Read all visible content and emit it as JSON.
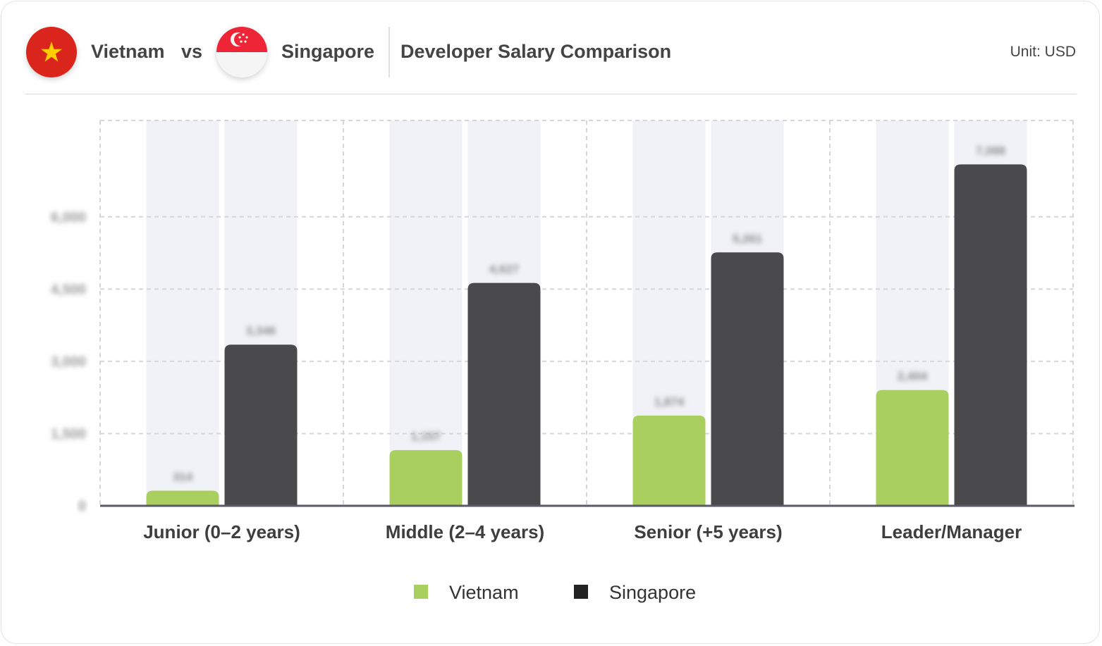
{
  "header": {
    "country_a": "Vietnam",
    "vs": "vs",
    "country_b": "Singapore",
    "title": "Developer Salary Comparison",
    "unit": "Unit: USD"
  },
  "flags": {
    "vietnam": {
      "icon": "vietnam-flag-icon",
      "red": "#da251d",
      "star": "#ffcd00"
    },
    "singapore": {
      "icon": "singapore-flag-icon",
      "red": "#ee2536",
      "white": "#f5f5f5"
    }
  },
  "legend": [
    {
      "label": "Vietnam",
      "color": "#a9cf5e"
    },
    {
      "label": "Singapore",
      "color": "#222222"
    }
  ],
  "chart_data": {
    "type": "bar",
    "categories": [
      "Junior (0–2 years)",
      "Middle (2–4 years)",
      "Senior (+5 years)",
      "Leader/Manager"
    ],
    "series": [
      {
        "name": "Vietnam",
        "color": "#a9cf5e",
        "values": [
          314,
          1157,
          1874,
          2404
        ]
      },
      {
        "name": "Singapore",
        "color": "#4a4a4c",
        "values": [
          3346,
          4627,
          5261,
          7088
        ]
      }
    ],
    "ylim": [
      0,
      8000
    ],
    "yticks": [
      0,
      1500,
      3000,
      4500,
      6000
    ],
    "ytick_labels": [
      "0",
      "1,500",
      "3,000",
      "4,500",
      "6,000"
    ],
    "value_labels_blurred": true,
    "grid": true,
    "legend_position": "bottom"
  }
}
